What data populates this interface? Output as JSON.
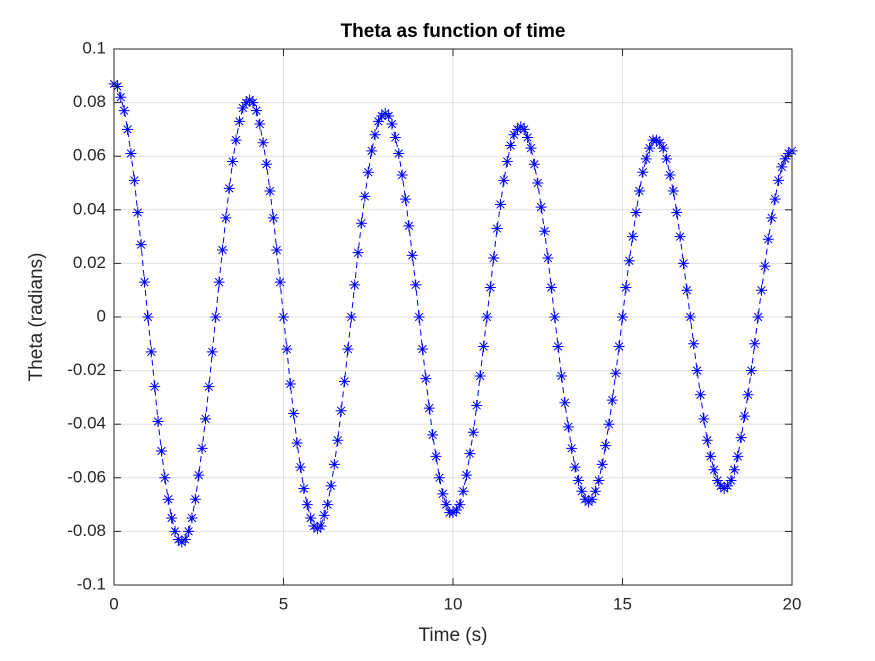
{
  "chart_data": {
    "type": "line",
    "title": "Theta as function of time",
    "x_label": "Time (s)",
    "y_label": "Theta (radians)",
    "x": [
      0,
      0.1,
      0.2,
      0.3,
      0.4,
      0.5,
      0.6,
      0.7,
      0.8,
      0.9,
      1,
      1.1,
      1.2,
      1.3,
      1.4,
      1.5,
      1.6,
      1.7,
      1.8,
      1.9,
      2,
      2.1,
      2.2,
      2.3,
      2.4,
      2.5,
      2.6,
      2.7,
      2.8,
      2.9,
      3,
      3.1,
      3.2,
      3.3,
      3.4,
      3.5,
      3.6,
      3.7,
      3.8,
      3.9,
      4,
      4.1,
      4.2,
      4.3,
      4.4,
      4.5,
      4.6,
      4.7,
      4.8,
      4.9,
      5,
      5.1,
      5.2,
      5.3,
      5.4,
      5.5,
      5.6,
      5.7,
      5.8,
      5.9,
      6,
      6.1,
      6.2,
      6.3,
      6.4,
      6.5,
      6.6,
      6.7,
      6.8,
      6.9,
      7,
      7.1,
      7.2,
      7.3,
      7.4,
      7.5,
      7.6,
      7.7,
      7.8,
      7.9,
      8,
      8.1,
      8.2,
      8.3,
      8.4,
      8.5,
      8.6,
      8.7,
      8.8,
      8.9,
      9,
      9.1,
      9.2,
      9.3,
      9.4,
      9.5,
      9.6,
      9.7,
      9.8,
      9.9,
      10,
      10.1,
      10.2,
      10.3,
      10.4,
      10.5,
      10.6,
      10.7,
      10.8,
      10.9,
      11,
      11.1,
      11.2,
      11.3,
      11.4,
      11.5,
      11.6,
      11.7,
      11.8,
      11.9,
      12,
      12.1,
      12.2,
      12.3,
      12.4,
      12.5,
      12.6,
      12.7,
      12.8,
      12.9,
      13,
      13.1,
      13.2,
      13.3,
      13.4,
      13.5,
      13.6,
      13.7,
      13.8,
      13.9,
      14,
      14.1,
      14.2,
      14.3,
      14.4,
      14.5,
      14.6,
      14.7,
      14.8,
      14.9,
      15,
      15.1,
      15.2,
      15.3,
      15.4,
      15.5,
      15.6,
      15.7,
      15.8,
      15.9,
      16,
      16.1,
      16.2,
      16.3,
      16.4,
      16.5,
      16.6,
      16.7,
      16.8,
      16.9,
      17,
      17.1,
      17.2,
      17.3,
      17.4,
      17.5,
      17.6,
      17.7,
      17.8,
      17.9,
      18,
      18.1,
      18.2,
      18.3,
      18.4,
      18.5,
      18.6,
      18.7,
      18.8,
      18.9,
      19,
      19.1,
      19.2,
      19.3,
      19.4,
      19.5,
      19.6,
      19.7,
      19.8,
      19.9,
      20
    ],
    "series": [
      {
        "color": "#0000ff",
        "line_style": "dashed",
        "marker": "*",
        "values": [
          0.087,
          0.086,
          0.082,
          0.077,
          0.07,
          0.061,
          0.051,
          0.039,
          0.027,
          0.013,
          0,
          -0.013,
          -0.026,
          -0.039,
          -0.05,
          -0.06,
          -0.068,
          -0.075,
          -0.08,
          -0.083,
          -0.084,
          -0.083,
          -0.08,
          -0.075,
          -0.068,
          -0.059,
          -0.049,
          -0.038,
          -0.026,
          -0.013,
          0,
          0.013,
          0.025,
          0.037,
          0.048,
          0.058,
          0.066,
          0.073,
          0.078,
          0.08,
          0.081,
          0.08,
          0.077,
          0.072,
          0.065,
          0.057,
          0.047,
          0.037,
          0.025,
          0.013,
          0,
          -0.012,
          -0.025,
          -0.036,
          -0.047,
          -0.056,
          -0.064,
          -0.07,
          -0.075,
          -0.078,
          -0.079,
          -0.078,
          -0.074,
          -0.07,
          -0.063,
          -0.055,
          -0.046,
          -0.035,
          -0.024,
          -0.012,
          0,
          0.012,
          0.024,
          0.035,
          0.045,
          0.054,
          0.062,
          0.068,
          0.073,
          0.075,
          0.076,
          0.075,
          0.072,
          0.067,
          0.061,
          0.053,
          0.044,
          0.034,
          0.023,
          0.012,
          0,
          -0.012,
          -0.023,
          -0.034,
          -0.044,
          -0.052,
          -0.06,
          -0.066,
          -0.07,
          -0.073,
          -0.073,
          -0.072,
          -0.07,
          -0.065,
          -0.059,
          -0.051,
          -0.043,
          -0.033,
          -0.022,
          -0.011,
          0,
          0.011,
          0.022,
          0.033,
          0.042,
          0.051,
          0.058,
          0.064,
          0.068,
          0.07,
          0.071,
          0.07,
          0.067,
          0.063,
          0.057,
          0.05,
          0.041,
          0.032,
          0.022,
          0.011,
          0,
          -0.011,
          -0.022,
          -0.032,
          -0.041,
          -0.049,
          -0.056,
          -0.061,
          -0.065,
          -0.068,
          -0.069,
          -0.068,
          -0.065,
          -0.061,
          -0.055,
          -0.048,
          -0.04,
          -0.031,
          -0.021,
          -0.011,
          0,
          0.011,
          0.021,
          0.03,
          0.039,
          0.047,
          0.054,
          0.059,
          0.063,
          0.066,
          0.066,
          0.065,
          0.063,
          0.059,
          0.053,
          0.047,
          0.039,
          0.03,
          0.02,
          0.01,
          0,
          -0.01,
          -0.02,
          -0.029,
          -0.038,
          -0.046,
          -0.052,
          -0.057,
          -0.061,
          -0.063,
          -0.064,
          -0.063,
          -0.061,
          -0.057,
          -0.052,
          -0.045,
          -0.037,
          -0.029,
          -0.02,
          -0.01,
          0,
          0.01,
          0.019,
          0.029,
          0.037,
          0.044,
          0.051,
          0.056,
          0.059,
          0.061,
          0.062
        ]
      }
    ],
    "xlim": [
      0,
      20
    ],
    "xticks": [
      0,
      5,
      10,
      15,
      20
    ],
    "ylim": [
      -0.1,
      0.1
    ],
    "yticks": [
      -0.1,
      -0.08,
      -0.06,
      -0.04,
      -0.02,
      0,
      0.02,
      0.04,
      0.06,
      0.08,
      0.1
    ],
    "grid": true
  }
}
